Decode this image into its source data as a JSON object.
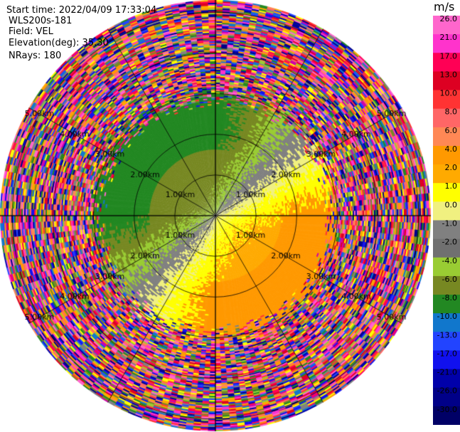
{
  "header": {
    "start_time": "Start time: 2022/04/09 17:33:04",
    "instrument": "WLS200s-181",
    "field": "Field: VEL",
    "elevation": "Elevation(deg): 35.30",
    "nrays": "NRays: 180"
  },
  "chart_data": {
    "type": "heatmap",
    "projection": "polar-ppi",
    "range_rings_km": [
      1,
      2,
      3,
      4,
      5
    ],
    "range_labels": [
      "1.00km",
      "2.00km",
      "3.00km",
      "4.00km",
      "5.00km"
    ],
    "max_range_km": 5.3,
    "azimuth_lines_deg": [
      0,
      30,
      60,
      90,
      120,
      150,
      180,
      210,
      240,
      270,
      300,
      330
    ],
    "field_note": "radial velocity",
    "wind_pattern": {
      "toward_sector_center_deg": 315,
      "away_sector_center_deg": 135,
      "clean_range_km": 2.9
    }
  },
  "colorbar": {
    "unit": "m/s",
    "ticks": [
      "26.0",
      "21.0",
      "17.0",
      "13.0",
      "10.0",
      "8.0",
      "6.0",
      "4.0",
      "2.0",
      "1.0",
      "0.0",
      "-1.0",
      "-2.0",
      "-4.0",
      "-6.0",
      "-8.0",
      "-10.0",
      "-13.0",
      "-17.0",
      "-21.0",
      "-26.0",
      "-30.0"
    ],
    "colors": [
      "#ff66cc",
      "#ff33cc",
      "#ff0055",
      "#dd0022",
      "#ff3333",
      "#ff6666",
      "#ff8855",
      "#ff9900",
      "#ffaa00",
      "#ffff00",
      "#f0f080",
      "#808080",
      "#707070",
      "#99cc33",
      "#778822",
      "#228822",
      "#1177cc",
      "#2244ff",
      "#1111ee",
      "#0000aa",
      "#000088",
      "#000066"
    ]
  }
}
